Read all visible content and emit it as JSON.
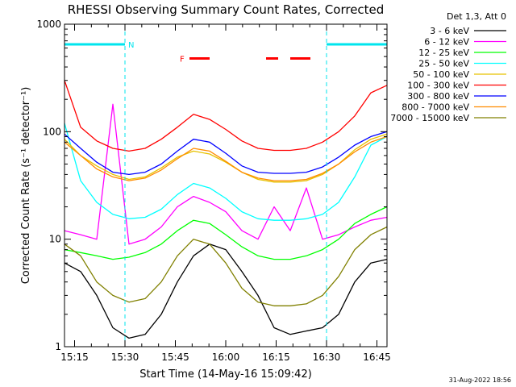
{
  "chart_data": {
    "type": "line",
    "title": "RHESSI Observing Summary Count Rates, Corrected",
    "xlabel": "Start Time (14-May-16 15:09:42)",
    "ylabel": "Corrected Count Rate (s⁻¹ detector⁻¹)",
    "y_scale": "log",
    "ylim": [
      1,
      1000
    ],
    "xlim": [
      15.2,
      16.8
    ],
    "x_ticks": [
      15.25,
      15.5,
      15.75,
      16.0,
      16.25,
      16.5,
      16.75
    ],
    "x_tick_labels": [
      "15:15",
      "15:30",
      "15:45",
      "16:00",
      "16:15",
      "16:30",
      "16:45"
    ],
    "y_ticks": [
      1,
      10,
      100,
      1000
    ],
    "y_tick_labels": [
      "1",
      "10",
      "100",
      "1000"
    ],
    "legend_title": "Det 1,3, Att 0",
    "legend_position": "top-right",
    "timestamp": "31-Aug-2022 18:56",
    "annotations": {
      "night": {
        "label": "N",
        "color": "#00e5ee",
        "y": 650,
        "intervals": [
          [
            15.2,
            15.5
          ],
          [
            16.5,
            16.8
          ]
        ]
      },
      "flare": {
        "label": "F",
        "color": "#ff0000",
        "y": 480,
        "intervals": [
          [
            15.82,
            15.92
          ],
          [
            16.2,
            16.26
          ],
          [
            16.32,
            16.42
          ]
        ]
      },
      "boundaries": {
        "color": "#00e5ee",
        "x": [
          15.2,
          15.5,
          16.5,
          16.8
        ]
      }
    },
    "series": [
      {
        "name": "3 - 6 keV",
        "color": "#000000",
        "values": [
          6,
          5,
          3,
          1.5,
          1.2,
          1.3,
          2,
          4,
          7,
          9,
          8,
          5,
          3,
          1.5,
          1.3,
          1.4,
          1.5,
          2,
          4,
          6,
          6.5
        ]
      },
      {
        "name": "6 - 12 keV",
        "color": "#ff00ff",
        "values": [
          12,
          11,
          10,
          180,
          9,
          10,
          13,
          20,
          25,
          22,
          18,
          12,
          10,
          20,
          12,
          30,
          10,
          11,
          13,
          15,
          16
        ]
      },
      {
        "name": "12 - 25 keV",
        "color": "#00ff00",
        "values": [
          8,
          7.5,
          7,
          6.5,
          6.8,
          7.5,
          9,
          12,
          15,
          14,
          11,
          8.5,
          7,
          6.5,
          6.5,
          7,
          8,
          10,
          14,
          17,
          20
        ]
      },
      {
        "name": "25 - 50 keV",
        "color": "#00ffff",
        "values": [
          120,
          35,
          22,
          17,
          15.5,
          16,
          19,
          26,
          33,
          30,
          24,
          18,
          15.5,
          15,
          15,
          15.5,
          17,
          22,
          38,
          75,
          90
        ]
      },
      {
        "name": "50 - 100 keV",
        "color": "#e6c200",
        "values": [
          85,
          60,
          48,
          40,
          36,
          38,
          46,
          58,
          66,
          62,
          52,
          42,
          36,
          34,
          34,
          35,
          40,
          50,
          68,
          85,
          95
        ]
      },
      {
        "name": "100 - 300 keV",
        "color": "#ff0000",
        "values": [
          300,
          110,
          82,
          70,
          66,
          70,
          85,
          110,
          145,
          130,
          105,
          82,
          70,
          67,
          67,
          70,
          80,
          100,
          140,
          230,
          270
        ]
      },
      {
        "name": "300 - 800 keV",
        "color": "#0000ff",
        "values": [
          95,
          70,
          52,
          42,
          40,
          42,
          50,
          66,
          85,
          80,
          63,
          48,
          42,
          41,
          41,
          42,
          47,
          58,
          75,
          90,
          100
        ]
      },
      {
        "name": "800 - 7000 keV",
        "color": "#ff8c00",
        "values": [
          80,
          60,
          45,
          38,
          35,
          37,
          44,
          56,
          70,
          66,
          53,
          42,
          37,
          35,
          35,
          36,
          41,
          50,
          65,
          80,
          90
        ]
      },
      {
        "name": "7000 - 15000 keV",
        "color": "#808000",
        "values": [
          9,
          7,
          4,
          3,
          2.6,
          2.8,
          4,
          7,
          10,
          9,
          6,
          3.5,
          2.6,
          2.4,
          2.4,
          2.5,
          3,
          4.5,
          8,
          11,
          13
        ]
      }
    ]
  }
}
